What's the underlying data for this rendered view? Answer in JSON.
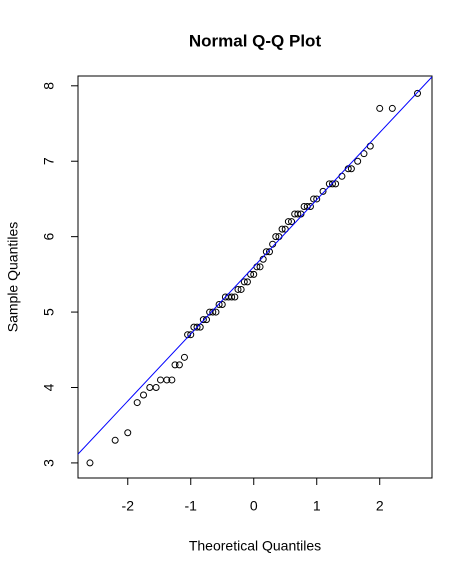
{
  "chart_data": {
    "type": "scatter",
    "title": "Normal Q-Q Plot",
    "x_label": "Theoretical Quantiles",
    "y_label": "Sample Quantiles",
    "x": [
      -2.6,
      -2.2,
      -2.0,
      -1.85,
      -1.75,
      -1.65,
      -1.55,
      -1.48,
      -1.38,
      -1.3,
      -1.25,
      -1.18,
      -1.1,
      -1.05,
      -1.0,
      -0.95,
      -0.9,
      -0.85,
      -0.8,
      -0.75,
      -0.7,
      -0.65,
      -0.6,
      -0.55,
      -0.5,
      -0.45,
      -0.4,
      -0.35,
      -0.3,
      -0.25,
      -0.2,
      -0.15,
      -0.1,
      -0.05,
      0,
      0.05,
      0.1,
      0.15,
      0.2,
      0.25,
      0.3,
      0.35,
      0.4,
      0.45,
      0.5,
      0.55,
      0.6,
      0.65,
      0.7,
      0.75,
      0.8,
      0.85,
      0.9,
      0.95,
      1.0,
      1.1,
      1.2,
      1.25,
      1.3,
      1.4,
      1.5,
      1.55,
      1.65,
      1.75,
      1.85,
      2.0,
      2.2,
      2.6
    ],
    "values": [
      3.0,
      3.3,
      3.4,
      3.8,
      3.9,
      4.0,
      4.0,
      4.1,
      4.1,
      4.1,
      4.3,
      4.3,
      4.4,
      4.7,
      4.7,
      4.8,
      4.8,
      4.8,
      4.9,
      4.9,
      5.0,
      5.0,
      5.0,
      5.1,
      5.1,
      5.2,
      5.2,
      5.2,
      5.2,
      5.3,
      5.3,
      5.4,
      5.4,
      5.5,
      5.5,
      5.6,
      5.6,
      5.7,
      5.8,
      5.8,
      5.9,
      6.0,
      6.0,
      6.1,
      6.1,
      6.2,
      6.2,
      6.3,
      6.3,
      6.3,
      6.4,
      6.4,
      6.4,
      6.5,
      6.5,
      6.6,
      6.7,
      6.7,
      6.7,
      6.8,
      6.9,
      6.9,
      7.0,
      7.1,
      7.2,
      7.7,
      7.7,
      7.9
    ],
    "color": "#000000",
    "qqline": {
      "intercept": 5.6,
      "slope": 0.89,
      "color": "#0000ff"
    },
    "xlim": [
      -2.79,
      2.83
    ],
    "ylim": [
      2.8,
      8.13
    ],
    "xticks": [
      -2,
      -1,
      0,
      1,
      2
    ],
    "yticks": [
      3,
      4,
      5,
      6,
      7,
      8
    ]
  }
}
